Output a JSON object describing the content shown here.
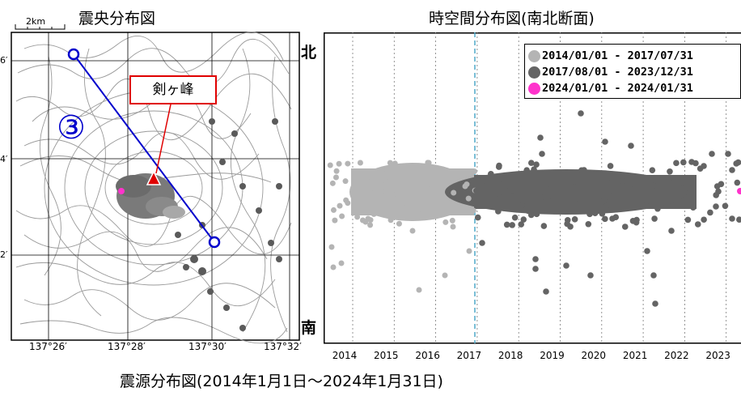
{
  "map": {
    "title": "震央分布図",
    "scale_label": "2km",
    "section_number": "③",
    "peak_label": "剣ヶ峰",
    "lon_labels": [
      "137°26′",
      "137°28′",
      "137°30′",
      "137°32′"
    ],
    "lat_labels": [
      "6′",
      "4′",
      "2′"
    ]
  },
  "section": {
    "title": "時空間分布図(南北断面)",
    "north_label": "北",
    "south_label": "南",
    "year_labels": [
      "2014",
      "2015",
      "2016",
      "2017",
      "2018",
      "2019",
      "2020",
      "2021",
      "2022",
      "2023"
    ],
    "legend": [
      {
        "label": "2014/01/01 - 2017/07/31",
        "color": "#b4b4b4"
      },
      {
        "label": "2017/08/01 - 2023/12/31",
        "color": "#646464"
      },
      {
        "label": "2024/01/01 - 2024/01/31",
        "color": "#ff33cc"
      }
    ]
  },
  "caption": "震源分布図(2014年1月1日〜2024年1月31日)",
  "colors": {
    "line": "#0000cc",
    "peak_marker": "#e00000",
    "period1": "#b4b4b4",
    "period2": "#646464",
    "period3": "#ff33cc",
    "boundary_line": "#4fa9c9"
  }
}
